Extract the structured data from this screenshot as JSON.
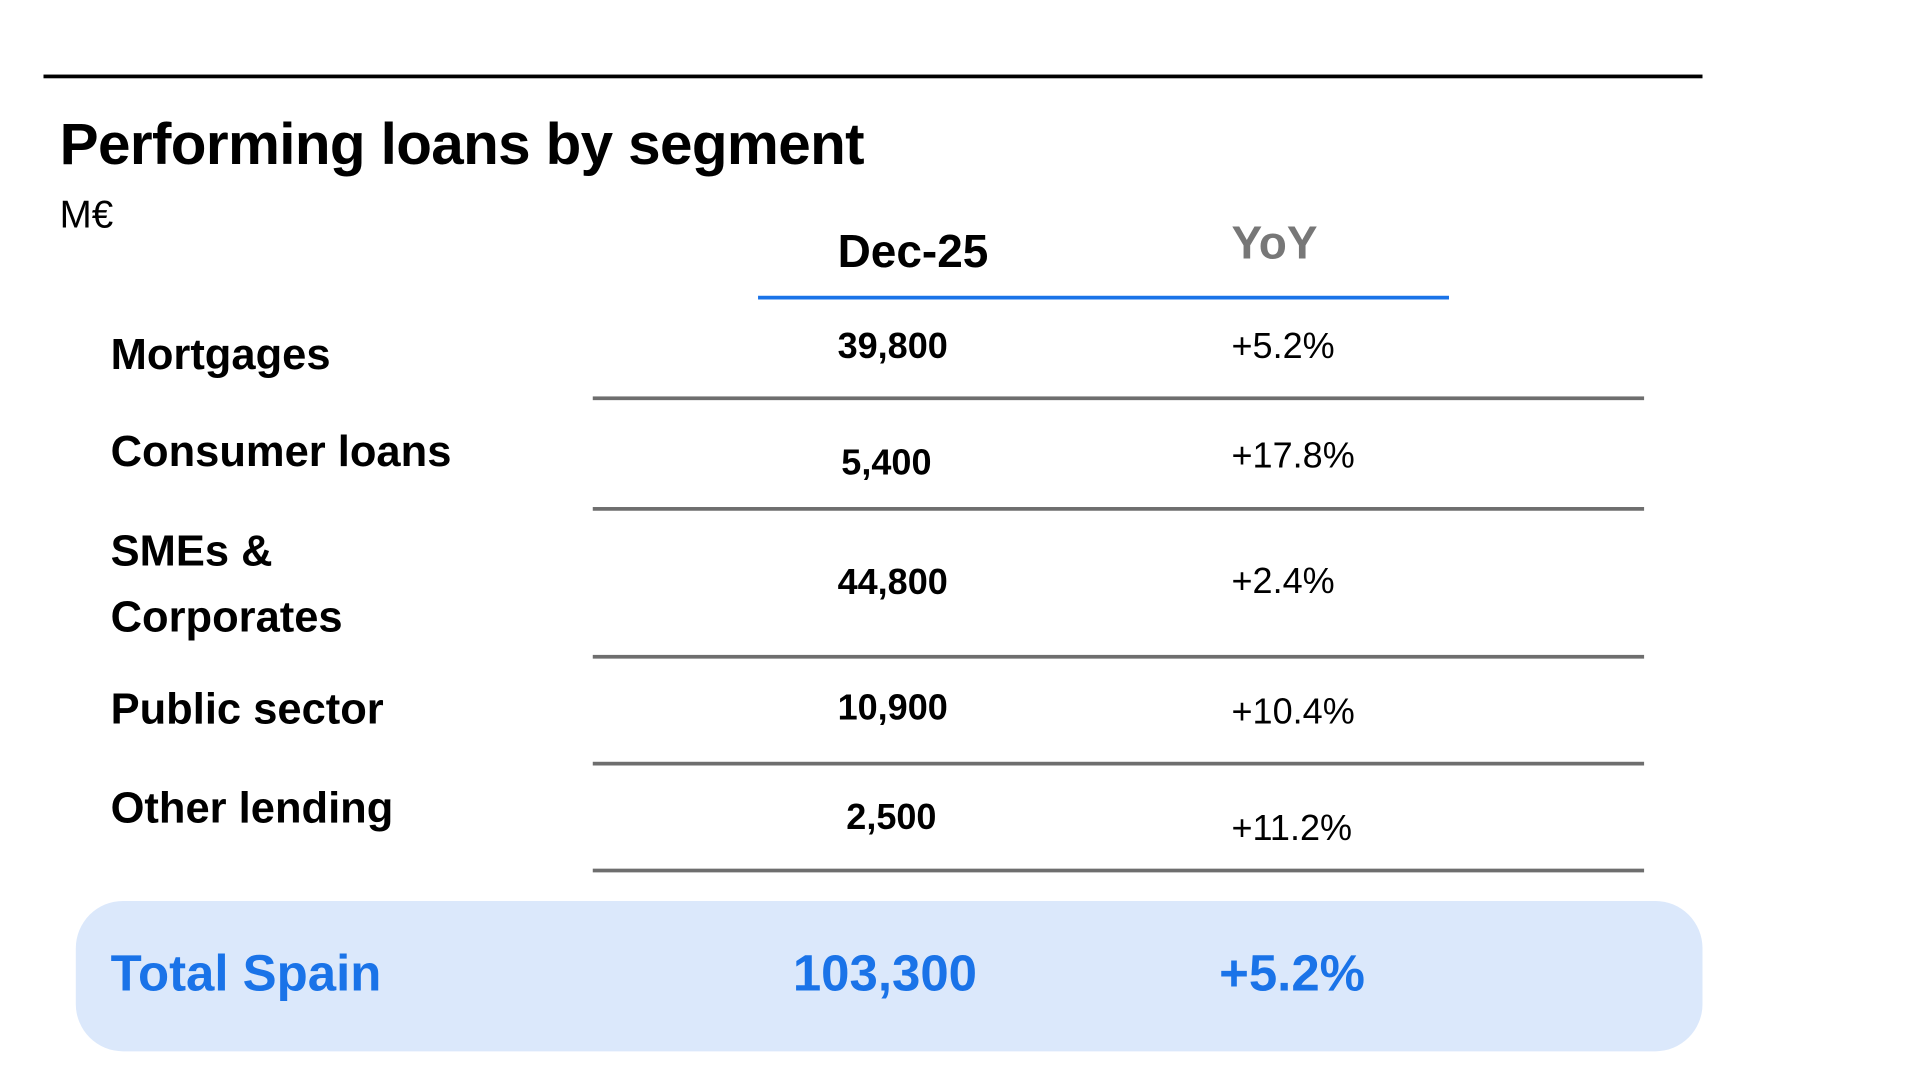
{
  "title": "Performing loans by segment",
  "unit": "M€",
  "columns": {
    "value": "Dec-25",
    "yoy": "YoY"
  },
  "rows": [
    {
      "label": "Mortgages",
      "value": "39,800",
      "yoy": "+5.2%"
    },
    {
      "label": "Consumer loans",
      "value": "5,400",
      "yoy": "+17.8%"
    },
    {
      "label": "SMEs & Corporates",
      "value": "44,800",
      "yoy": "+2.4%"
    },
    {
      "label": "Public sector",
      "value": "10,900",
      "yoy": "+10.4%"
    },
    {
      "label": "Other lending",
      "value": "2,500",
      "yoy": "+11.2%"
    }
  ],
  "total": {
    "label": "Total Spain",
    "value": "103,300",
    "yoy": "+5.2%"
  },
  "colors": {
    "accent": "#1a73e8",
    "total_bg": "#dbe8fb",
    "yoy_header": "#777777",
    "row_rule": "#6e6e6e"
  }
}
